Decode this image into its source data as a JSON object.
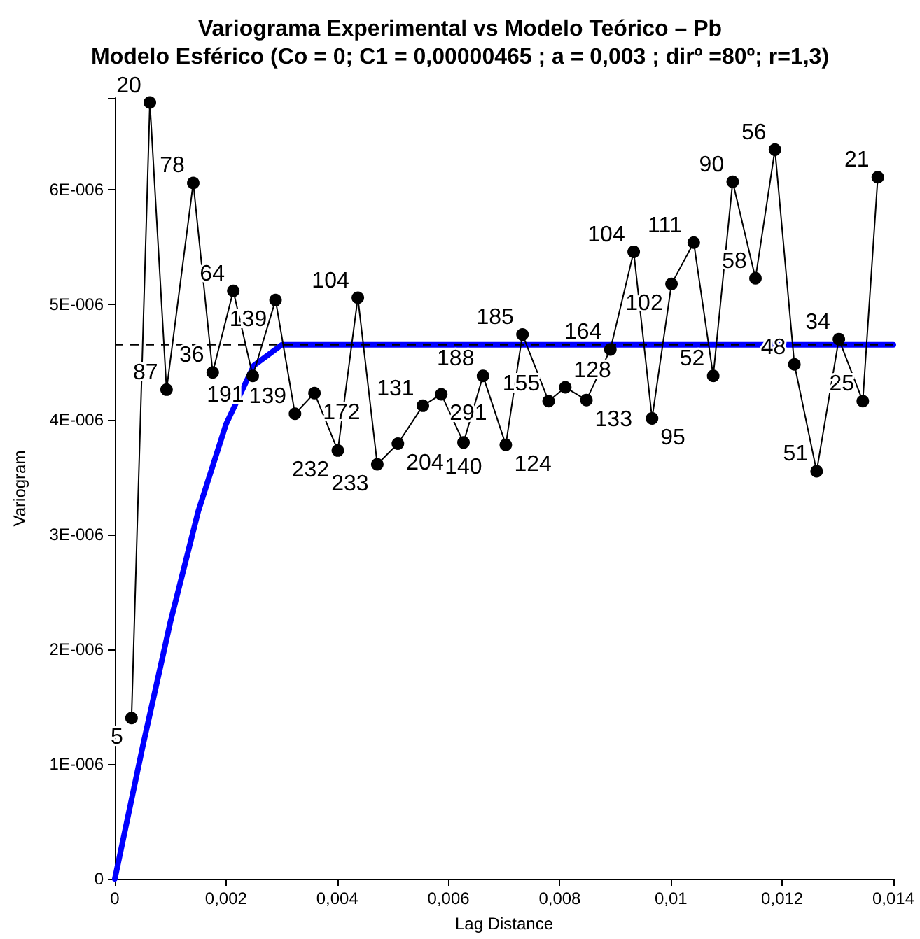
{
  "chart_data": {
    "type": "line",
    "title": "Variograma Experimental vs Modelo Teórico – Pb",
    "subtitle": "Modelo Esférico (Co = 0; C1 = 0,00000465 ; a = 0,003 ; dirº =80º; r=1,3)",
    "xlabel": "Lag Distance",
    "ylabel": "Variogram",
    "series": [
      {
        "color": "#000000",
        "marker": "circle",
        "line_style": "solid",
        "x": [
          0.0003,
          0.00063,
          0.00093,
          0.00141,
          0.00176,
          0.00213,
          0.00248,
          0.00289,
          0.00324,
          0.00359,
          0.00401,
          0.00437,
          0.00472,
          0.00509,
          0.00554,
          0.00587,
          0.00627,
          0.00662,
          0.00703,
          0.00733,
          0.0078,
          0.0081,
          0.00848,
          0.00891,
          0.00933,
          0.00966,
          0.01001,
          0.01041,
          0.01076,
          0.01111,
          0.01152,
          0.01187,
          0.01222,
          0.01262,
          0.01302,
          0.01345,
          0.01372
        ],
        "values": [
          1.4e-06,
          6.76e-06,
          4.26e-06,
          6.06e-06,
          4.41e-06,
          5.12e-06,
          4.38e-06,
          5.04e-06,
          4.05e-06,
          4.23e-06,
          3.73e-06,
          5.06e-06,
          3.61e-06,
          3.79e-06,
          4.12e-06,
          4.22e-06,
          3.8e-06,
          4.38e-06,
          3.78e-06,
          4.74e-06,
          4.16e-06,
          4.28e-06,
          4.17e-06,
          4.61e-06,
          5.46e-06,
          4.01e-06,
          5.18e-06,
          5.54e-06,
          4.38e-06,
          6.07e-06,
          5.23e-06,
          6.35e-06,
          4.48e-06,
          3.55e-06,
          4.7e-06,
          4.16e-06,
          6.11e-06
        ]
      },
      {
        "color": "#0000ff",
        "marker": "none",
        "line_style": "solid",
        "x": [
          0,
          0.0005,
          0.001,
          0.0015,
          0.002,
          0.0025,
          0.003,
          0.014
        ],
        "values": [
          0,
          1.15e-06,
          2.24e-06,
          3.2e-06,
          3.96e-06,
          4.47e-06,
          4.65e-06,
          4.65e-06
        ]
      }
    ],
    "annotations": [
      {
        "text": "5",
        "x": 0.0003,
        "y": 1.4e-06
      },
      {
        "text": "20",
        "x": 0.00063,
        "y": 6.76e-06
      },
      {
        "text": "87",
        "x": 0.00093,
        "y": 4.26e-06
      },
      {
        "text": "78",
        "x": 0.00141,
        "y": 6.06e-06
      },
      {
        "text": "36",
        "x": 0.00176,
        "y": 4.41e-06
      },
      {
        "text": "64",
        "x": 0.00213,
        "y": 5.12e-06
      },
      {
        "text": "191",
        "x": 0.00248,
        "y": 4.38e-06
      },
      {
        "text": "139",
        "x": 0.00289,
        "y": 5.04e-06
      },
      {
        "text": "139",
        "x": 0.00324,
        "y": 4.05e-06
      },
      {
        "text": "172",
        "x": 0.00359,
        "y": 4.23e-06
      },
      {
        "text": "232",
        "x": 0.00401,
        "y": 3.73e-06
      },
      {
        "text": "104",
        "x": 0.00437,
        "y": 5.06e-06
      },
      {
        "text": "233",
        "x": 0.00472,
        "y": 3.61e-06
      },
      {
        "text": "204",
        "x": 0.00509,
        "y": 3.79e-06
      },
      {
        "text": "131",
        "x": 0.00554,
        "y": 4.12e-06
      },
      {
        "text": "291",
        "x": 0.00587,
        "y": 4.22e-06
      },
      {
        "text": "140",
        "x": 0.00627,
        "y": 3.8e-06
      },
      {
        "text": "188",
        "x": 0.00662,
        "y": 4.38e-06
      },
      {
        "text": "124",
        "x": 0.00703,
        "y": 3.78e-06
      },
      {
        "text": "185",
        "x": 0.00733,
        "y": 4.74e-06
      },
      {
        "text": "155",
        "x": 0.0078,
        "y": 4.16e-06
      },
      {
        "text": "128",
        "x": 0.0081,
        "y": 4.28e-06
      },
      {
        "text": "133",
        "x": 0.00848,
        "y": 4.17e-06
      },
      {
        "text": "164",
        "x": 0.00891,
        "y": 4.61e-06
      },
      {
        "text": "104",
        "x": 0.00933,
        "y": 5.46e-06
      },
      {
        "text": "95",
        "x": 0.00966,
        "y": 4.01e-06
      },
      {
        "text": "102",
        "x": 0.01001,
        "y": 5.18e-06
      },
      {
        "text": "111",
        "x": 0.01041,
        "y": 5.54e-06
      },
      {
        "text": "52",
        "x": 0.01076,
        "y": 4.38e-06
      },
      {
        "text": "90",
        "x": 0.01111,
        "y": 6.07e-06
      },
      {
        "text": "58",
        "x": 0.01152,
        "y": 5.23e-06
      },
      {
        "text": "56",
        "x": 0.01187,
        "y": 6.35e-06
      },
      {
        "text": "48",
        "x": 0.01222,
        "y": 4.48e-06
      },
      {
        "text": "51",
        "x": 0.01262,
        "y": 3.55e-06
      },
      {
        "text": "34",
        "x": 0.01302,
        "y": 4.7e-06
      },
      {
        "text": "25",
        "x": 0.01345,
        "y": 4.16e-06
      },
      {
        "text": "21",
        "x": 0.01372,
        "y": 6.11e-06
      }
    ],
    "ref_lines": [
      {
        "axis": "y",
        "value": 4.65e-06,
        "color": "#000000",
        "line_style": "dashed"
      }
    ],
    "xlim": [
      0,
      0.014
    ],
    "xticks": [
      0,
      {
        "value": 0.002,
        "label": "0,002"
      },
      {
        "value": 0.004,
        "label": "0,004"
      },
      {
        "value": 0.006,
        "label": "0,006"
      },
      {
        "value": 0.008,
        "label": "0,008"
      },
      {
        "value": 0.01,
        "label": "0,01"
      },
      {
        "value": 0.012,
        "label": "0,012"
      },
      {
        "value": 0.014,
        "label": "0,014"
      }
    ],
    "ylim": [
      0,
      6.8e-06
    ],
    "yticks": [
      0,
      {
        "value": 1e-06,
        "label": "1E-006"
      },
      {
        "value": 2e-06,
        "label": "2E-006"
      },
      {
        "value": 3e-06,
        "label": "3E-006"
      },
      {
        "value": 4e-06,
        "label": "4E-006"
      },
      {
        "value": 5e-06,
        "label": "5E-006"
      },
      {
        "value": 6e-06,
        "label": "6E-006"
      }
    ],
    "grid": false
  }
}
